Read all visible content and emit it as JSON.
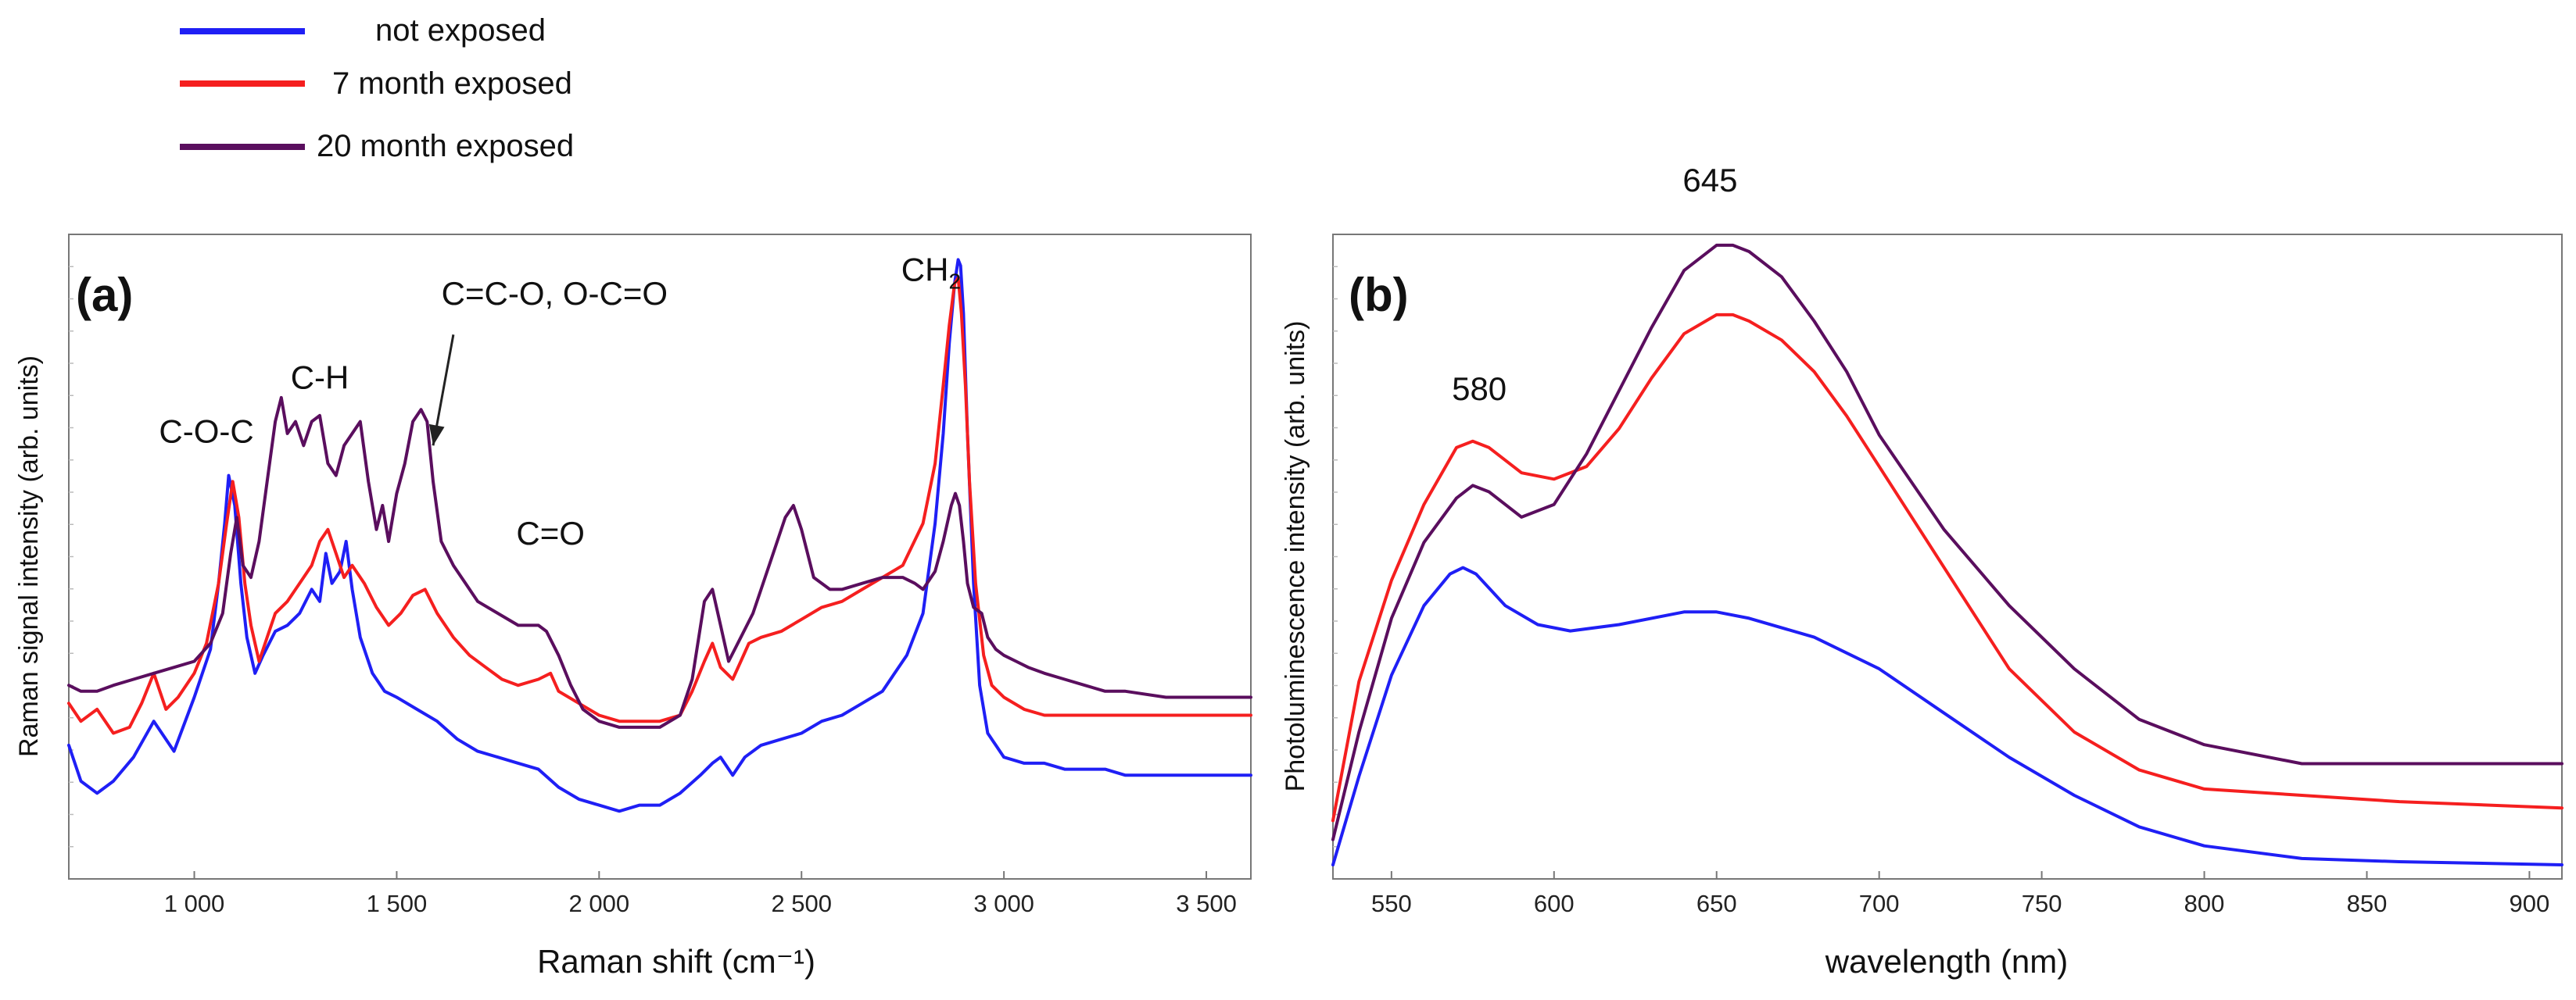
{
  "legend": {
    "entries": [
      {
        "label": "not exposed",
        "color": "#1f1ff5"
      },
      {
        "label": "7 month exposed",
        "color": "#f51f1f"
      },
      {
        "label": "20 month exposed",
        "color": "#5a0e5e"
      }
    ]
  },
  "chart_data": [
    {
      "id": "a",
      "type": "line",
      "panel_label": "(a)",
      "xlabel": "Raman shift (cm⁻¹)",
      "ylabel": "Raman signal  intensity (arb. units)",
      "xlim": [
        690,
        3610
      ],
      "ylim": [
        0,
        1
      ],
      "x_ticks": [
        1000,
        1500,
        2000,
        2500,
        3000,
        3500
      ],
      "x_tick_labels": [
        "1 000",
        "1 500",
        "2 000",
        "2 500",
        "3 000",
        "3 500"
      ],
      "annotations": [
        {
          "text": "C-O-C",
          "x": 1030,
          "y": 0.685
        },
        {
          "text": "C-H",
          "x": 1310,
          "y": 0.775
        },
        {
          "text": "C=C-O, O-C=O",
          "x": 1890,
          "y": 0.915
        },
        {
          "text": "C=O",
          "x": 1880,
          "y": 0.515
        },
        {
          "text": "CH",
          "sub": "2",
          "x": 2820,
          "y": 0.955
        }
      ],
      "arrow": {
        "from": [
          1640,
          0.865
        ],
        "to": [
          1590,
          0.68
        ]
      },
      "series": [
        {
          "name": "not exposed",
          "color": "#1f1ff5",
          "x": [
            690,
            720,
            760,
            800,
            850,
            900,
            950,
            1000,
            1040,
            1060,
            1075,
            1085,
            1100,
            1115,
            1130,
            1150,
            1170,
            1200,
            1230,
            1260,
            1290,
            1310,
            1325,
            1340,
            1360,
            1375,
            1390,
            1410,
            1440,
            1470,
            1500,
            1550,
            1600,
            1650,
            1700,
            1750,
            1800,
            1850,
            1900,
            1950,
            2000,
            2050,
            2100,
            2150,
            2200,
            2250,
            2280,
            2300,
            2330,
            2360,
            2400,
            2450,
            2500,
            2550,
            2600,
            2650,
            2700,
            2730,
            2760,
            2800,
            2830,
            2850,
            2865,
            2878,
            2887,
            2893,
            2900,
            2910,
            2925,
            2940,
            2960,
            2980,
            3000,
            3050,
            3100,
            3150,
            3200,
            3250,
            3300,
            3350,
            3400,
            3450,
            3500,
            3550,
            3610
          ],
          "y": [
            0.18,
            0.12,
            0.1,
            0.12,
            0.16,
            0.22,
            0.17,
            0.26,
            0.34,
            0.45,
            0.55,
            0.63,
            0.58,
            0.45,
            0.36,
            0.3,
            0.33,
            0.37,
            0.38,
            0.4,
            0.44,
            0.42,
            0.5,
            0.45,
            0.47,
            0.52,
            0.44,
            0.36,
            0.3,
            0.27,
            0.26,
            0.24,
            0.22,
            0.19,
            0.17,
            0.16,
            0.15,
            0.14,
            0.11,
            0.09,
            0.08,
            0.07,
            0.08,
            0.08,
            0.1,
            0.13,
            0.15,
            0.16,
            0.13,
            0.16,
            0.18,
            0.19,
            0.2,
            0.22,
            0.23,
            0.25,
            0.27,
            0.3,
            0.33,
            0.4,
            0.55,
            0.7,
            0.85,
            0.95,
            0.99,
            0.98,
            0.9,
            0.7,
            0.45,
            0.28,
            0.2,
            0.18,
            0.16,
            0.15,
            0.15,
            0.14,
            0.14,
            0.14,
            0.13,
            0.13,
            0.13,
            0.13,
            0.13,
            0.13,
            0.13
          ]
        },
        {
          "name": "7 month exposed",
          "color": "#f51f1f",
          "x": [
            690,
            720,
            760,
            800,
            840,
            870,
            900,
            930,
            960,
            1000,
            1030,
            1060,
            1080,
            1095,
            1110,
            1125,
            1140,
            1160,
            1180,
            1200,
            1230,
            1260,
            1290,
            1310,
            1330,
            1350,
            1370,
            1390,
            1420,
            1450,
            1480,
            1510,
            1540,
            1570,
            1600,
            1640,
            1680,
            1720,
            1760,
            1800,
            1850,
            1880,
            1900,
            1950,
            2000,
            2050,
            2100,
            2150,
            2200,
            2230,
            2260,
            2280,
            2300,
            2330,
            2350,
            2370,
            2400,
            2450,
            2500,
            2550,
            2600,
            2650,
            2700,
            2750,
            2800,
            2830,
            2850,
            2865,
            2878,
            2887,
            2895,
            2905,
            2915,
            2930,
            2950,
            2970,
            3000,
            3050,
            3100,
            3150,
            3200,
            3250,
            3300,
            3400,
            3500,
            3610
          ],
          "y": [
            0.25,
            0.22,
            0.24,
            0.2,
            0.21,
            0.25,
            0.3,
            0.24,
            0.26,
            0.3,
            0.35,
            0.45,
            0.55,
            0.62,
            0.56,
            0.45,
            0.38,
            0.32,
            0.36,
            0.4,
            0.42,
            0.45,
            0.48,
            0.52,
            0.54,
            0.5,
            0.46,
            0.48,
            0.45,
            0.41,
            0.38,
            0.4,
            0.43,
            0.44,
            0.4,
            0.36,
            0.33,
            0.31,
            0.29,
            0.28,
            0.29,
            0.3,
            0.27,
            0.25,
            0.23,
            0.22,
            0.22,
            0.22,
            0.23,
            0.27,
            0.32,
            0.35,
            0.31,
            0.29,
            0.32,
            0.35,
            0.36,
            0.37,
            0.39,
            0.41,
            0.42,
            0.44,
            0.46,
            0.48,
            0.55,
            0.65,
            0.78,
            0.88,
            0.95,
            0.96,
            0.9,
            0.78,
            0.62,
            0.45,
            0.33,
            0.28,
            0.26,
            0.24,
            0.23,
            0.23,
            0.23,
            0.23,
            0.23,
            0.23,
            0.23,
            0.23
          ]
        },
        {
          "name": "20 month exposed",
          "color": "#5a0e5e",
          "x": [
            690,
            720,
            760,
            800,
            850,
            900,
            950,
            1000,
            1040,
            1070,
            1090,
            1105,
            1120,
            1140,
            1160,
            1180,
            1200,
            1215,
            1230,
            1250,
            1270,
            1290,
            1310,
            1330,
            1350,
            1370,
            1390,
            1410,
            1430,
            1450,
            1465,
            1480,
            1500,
            1520,
            1540,
            1560,
            1575,
            1590,
            1610,
            1640,
            1670,
            1700,
            1750,
            1800,
            1850,
            1870,
            1900,
            1930,
            1960,
            2000,
            2050,
            2100,
            2150,
            2200,
            2230,
            2260,
            2280,
            2300,
            2320,
            2350,
            2380,
            2400,
            2430,
            2460,
            2480,
            2500,
            2530,
            2570,
            2600,
            2650,
            2700,
            2750,
            2780,
            2800,
            2830,
            2850,
            2870,
            2880,
            2890,
            2900,
            2910,
            2925,
            2945,
            2960,
            2980,
            3000,
            3030,
            3060,
            3100,
            3150,
            3200,
            3250,
            3300,
            3400,
            3500,
            3610
          ],
          "y": [
            0.28,
            0.27,
            0.27,
            0.28,
            0.29,
            0.3,
            0.31,
            0.32,
            0.35,
            0.4,
            0.5,
            0.56,
            0.48,
            0.46,
            0.52,
            0.62,
            0.72,
            0.76,
            0.7,
            0.72,
            0.68,
            0.72,
            0.73,
            0.65,
            0.63,
            0.68,
            0.7,
            0.72,
            0.62,
            0.54,
            0.58,
            0.52,
            0.6,
            0.65,
            0.72,
            0.74,
            0.72,
            0.62,
            0.52,
            0.48,
            0.45,
            0.42,
            0.4,
            0.38,
            0.38,
            0.37,
            0.33,
            0.28,
            0.24,
            0.22,
            0.21,
            0.21,
            0.21,
            0.23,
            0.29,
            0.42,
            0.44,
            0.38,
            0.32,
            0.36,
            0.4,
            0.44,
            0.5,
            0.56,
            0.58,
            0.54,
            0.46,
            0.44,
            0.44,
            0.45,
            0.46,
            0.46,
            0.45,
            0.44,
            0.47,
            0.52,
            0.58,
            0.6,
            0.58,
            0.52,
            0.45,
            0.41,
            0.4,
            0.36,
            0.34,
            0.33,
            0.32,
            0.31,
            0.3,
            0.29,
            0.28,
            0.27,
            0.27,
            0.26,
            0.26,
            0.26
          ]
        }
      ]
    },
    {
      "id": "b",
      "type": "line",
      "panel_label": "(b)",
      "xlabel": "wavelength (nm)",
      "ylabel": "Photoluminescence intensity (arb. units)",
      "xlim": [
        532,
        910
      ],
      "ylim": [
        0,
        1
      ],
      "x_ticks": [
        550,
        600,
        650,
        700,
        750,
        800,
        850,
        900
      ],
      "x_tick_labels": [
        "550",
        "600",
        "650",
        "700",
        "750",
        "800",
        "850",
        "900"
      ],
      "annotations": [
        {
          "text": "580",
          "x": 577,
          "y": 0.745
        },
        {
          "text": "645",
          "x": 648,
          "y": 1.075
        }
      ],
      "series": [
        {
          "name": "not exposed",
          "color": "#1f1ff5",
          "x": [
            532,
            540,
            550,
            560,
            568,
            572,
            576,
            585,
            595,
            605,
            620,
            640,
            650,
            660,
            680,
            700,
            720,
            740,
            760,
            780,
            800,
            830,
            860,
            910
          ],
          "y": [
            0.01,
            0.15,
            0.31,
            0.42,
            0.47,
            0.48,
            0.47,
            0.42,
            0.39,
            0.38,
            0.39,
            0.41,
            0.41,
            0.4,
            0.37,
            0.32,
            0.25,
            0.18,
            0.12,
            0.07,
            0.04,
            0.02,
            0.015,
            0.01
          ]
        },
        {
          "name": "7 month exposed",
          "color": "#f51f1f",
          "x": [
            532,
            540,
            550,
            560,
            570,
            575,
            580,
            590,
            600,
            610,
            620,
            630,
            640,
            650,
            655,
            660,
            670,
            680,
            690,
            700,
            720,
            740,
            760,
            780,
            800,
            830,
            860,
            910
          ],
          "y": [
            0.08,
            0.3,
            0.46,
            0.58,
            0.67,
            0.68,
            0.67,
            0.63,
            0.62,
            0.64,
            0.7,
            0.78,
            0.85,
            0.88,
            0.88,
            0.87,
            0.84,
            0.79,
            0.72,
            0.64,
            0.48,
            0.32,
            0.22,
            0.16,
            0.13,
            0.12,
            0.11,
            0.1
          ]
        },
        {
          "name": "20 month exposed",
          "color": "#5a0e5e",
          "x": [
            532,
            540,
            550,
            560,
            570,
            575,
            580,
            590,
            600,
            610,
            620,
            630,
            640,
            650,
            655,
            660,
            670,
            680,
            690,
            700,
            720,
            740,
            760,
            780,
            800,
            830,
            860,
            910
          ],
          "y": [
            0.05,
            0.22,
            0.4,
            0.52,
            0.59,
            0.61,
            0.6,
            0.56,
            0.58,
            0.66,
            0.76,
            0.86,
            0.95,
            0.99,
            0.99,
            0.98,
            0.94,
            0.87,
            0.79,
            0.69,
            0.54,
            0.42,
            0.32,
            0.24,
            0.2,
            0.17,
            0.17,
            0.17
          ]
        }
      ]
    }
  ]
}
